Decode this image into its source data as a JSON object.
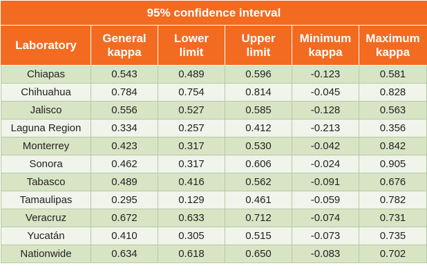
{
  "table": {
    "super_header": "95% confidence interval",
    "columns": [
      "Laboratory",
      "General kappa",
      "Lower limit",
      "Upper limit",
      "Minimum kappa",
      "Maximum kappa"
    ],
    "rows": [
      [
        "Chiapas",
        "0.543",
        "0.489",
        "0.596",
        "-0.123",
        "0.581"
      ],
      [
        "Chihuahua",
        "0.784",
        "0.754",
        "0.814",
        "-0.045",
        "0.828"
      ],
      [
        "Jalisco",
        "0.556",
        "0.527",
        "0.585",
        "-0.128",
        "0.563"
      ],
      [
        "Laguna Region",
        "0.334",
        "0.257",
        "0.412",
        "-0.213",
        "0.356"
      ],
      [
        "Monterrey",
        "0.423",
        "0.317",
        "0.530",
        "-0.042",
        "0.842"
      ],
      [
        "Sonora",
        "0.462",
        "0.317",
        "0.606",
        "-0.024",
        "0.905"
      ],
      [
        "Tabasco",
        "0.489",
        "0.416",
        "0.562",
        "-0.091",
        "0.676"
      ],
      [
        "Tamaulipas",
        "0.295",
        "0.129",
        "0.461",
        "-0.059",
        "0.782"
      ],
      [
        "Veracruz",
        "0.672",
        "0.633",
        "0.712",
        "-0.074",
        "0.731"
      ],
      [
        "Yucatán",
        "0.410",
        "0.305",
        "0.515",
        "-0.073",
        "0.735"
      ],
      [
        "Nationwide",
        "0.634",
        "0.618",
        "0.650",
        "-0.083",
        "0.702"
      ]
    ],
    "colors": {
      "header": "#f26b21",
      "row_dark": "#d8e5c5",
      "row_light": "#f0f4ea"
    }
  }
}
